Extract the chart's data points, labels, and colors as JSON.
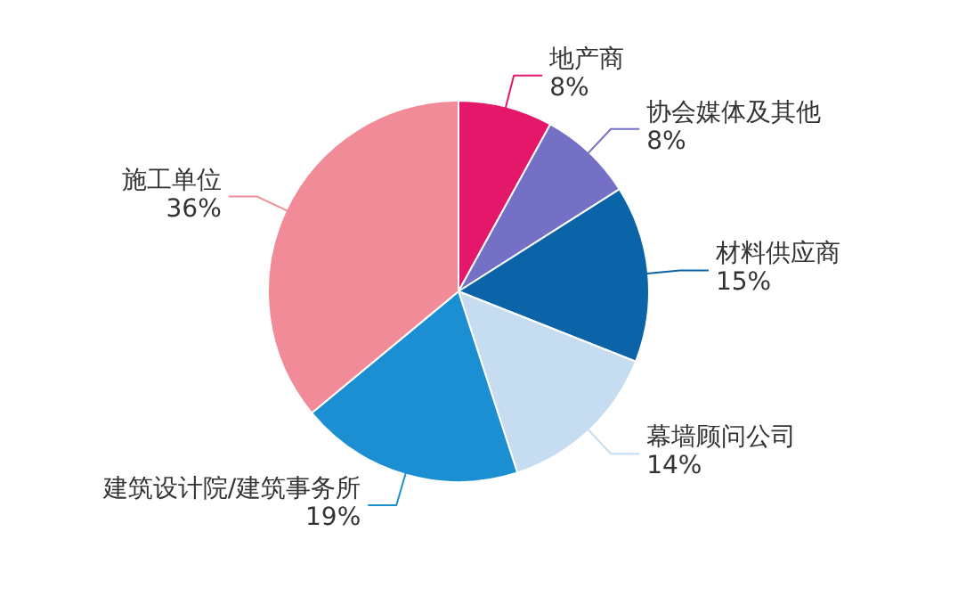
{
  "chart_data": {
    "type": "pie",
    "categories": [
      "地产商",
      "协会媒体及其他",
      "材料供应商",
      "幕墙顾问公司",
      "建筑设计院/建筑事务所",
      "施工单位"
    ],
    "values": [
      8,
      8,
      15,
      14,
      19,
      36
    ],
    "value_labels": [
      "8%",
      "8%",
      "15%",
      "14%",
      "19%",
      "36%"
    ],
    "colors": [
      "#e5176a",
      "#7470c6",
      "#0b63a8",
      "#c6dcf0",
      "#1b8fd2",
      "#f18b98"
    ]
  }
}
